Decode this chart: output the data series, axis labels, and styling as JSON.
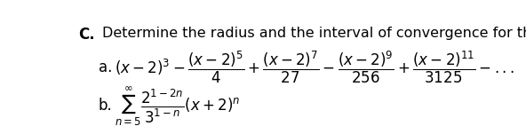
{
  "background_color": "#ffffff",
  "label_c": "C.",
  "title_text": "Determine the radius and the interval of convergence for the given power series:",
  "title_fontsize": 11.5,
  "label_fontsize": 12,
  "math_fontsize": 12,
  "part_a_label": "a.",
  "part_b_label": "b.",
  "part_a_math": "$(x - 2)^3 - \\dfrac{(x-2)^5}{4} + \\dfrac{(x-2)^7}{27} - \\dfrac{(x-2)^9}{256} + \\dfrac{(x-2)^{11}}{3125} - ...$",
  "part_b_math": "$\\sum_{n=5}^{\\infty} \\dfrac{2^{1-2n}}{3^{1-n}}(x + 2)^n$"
}
